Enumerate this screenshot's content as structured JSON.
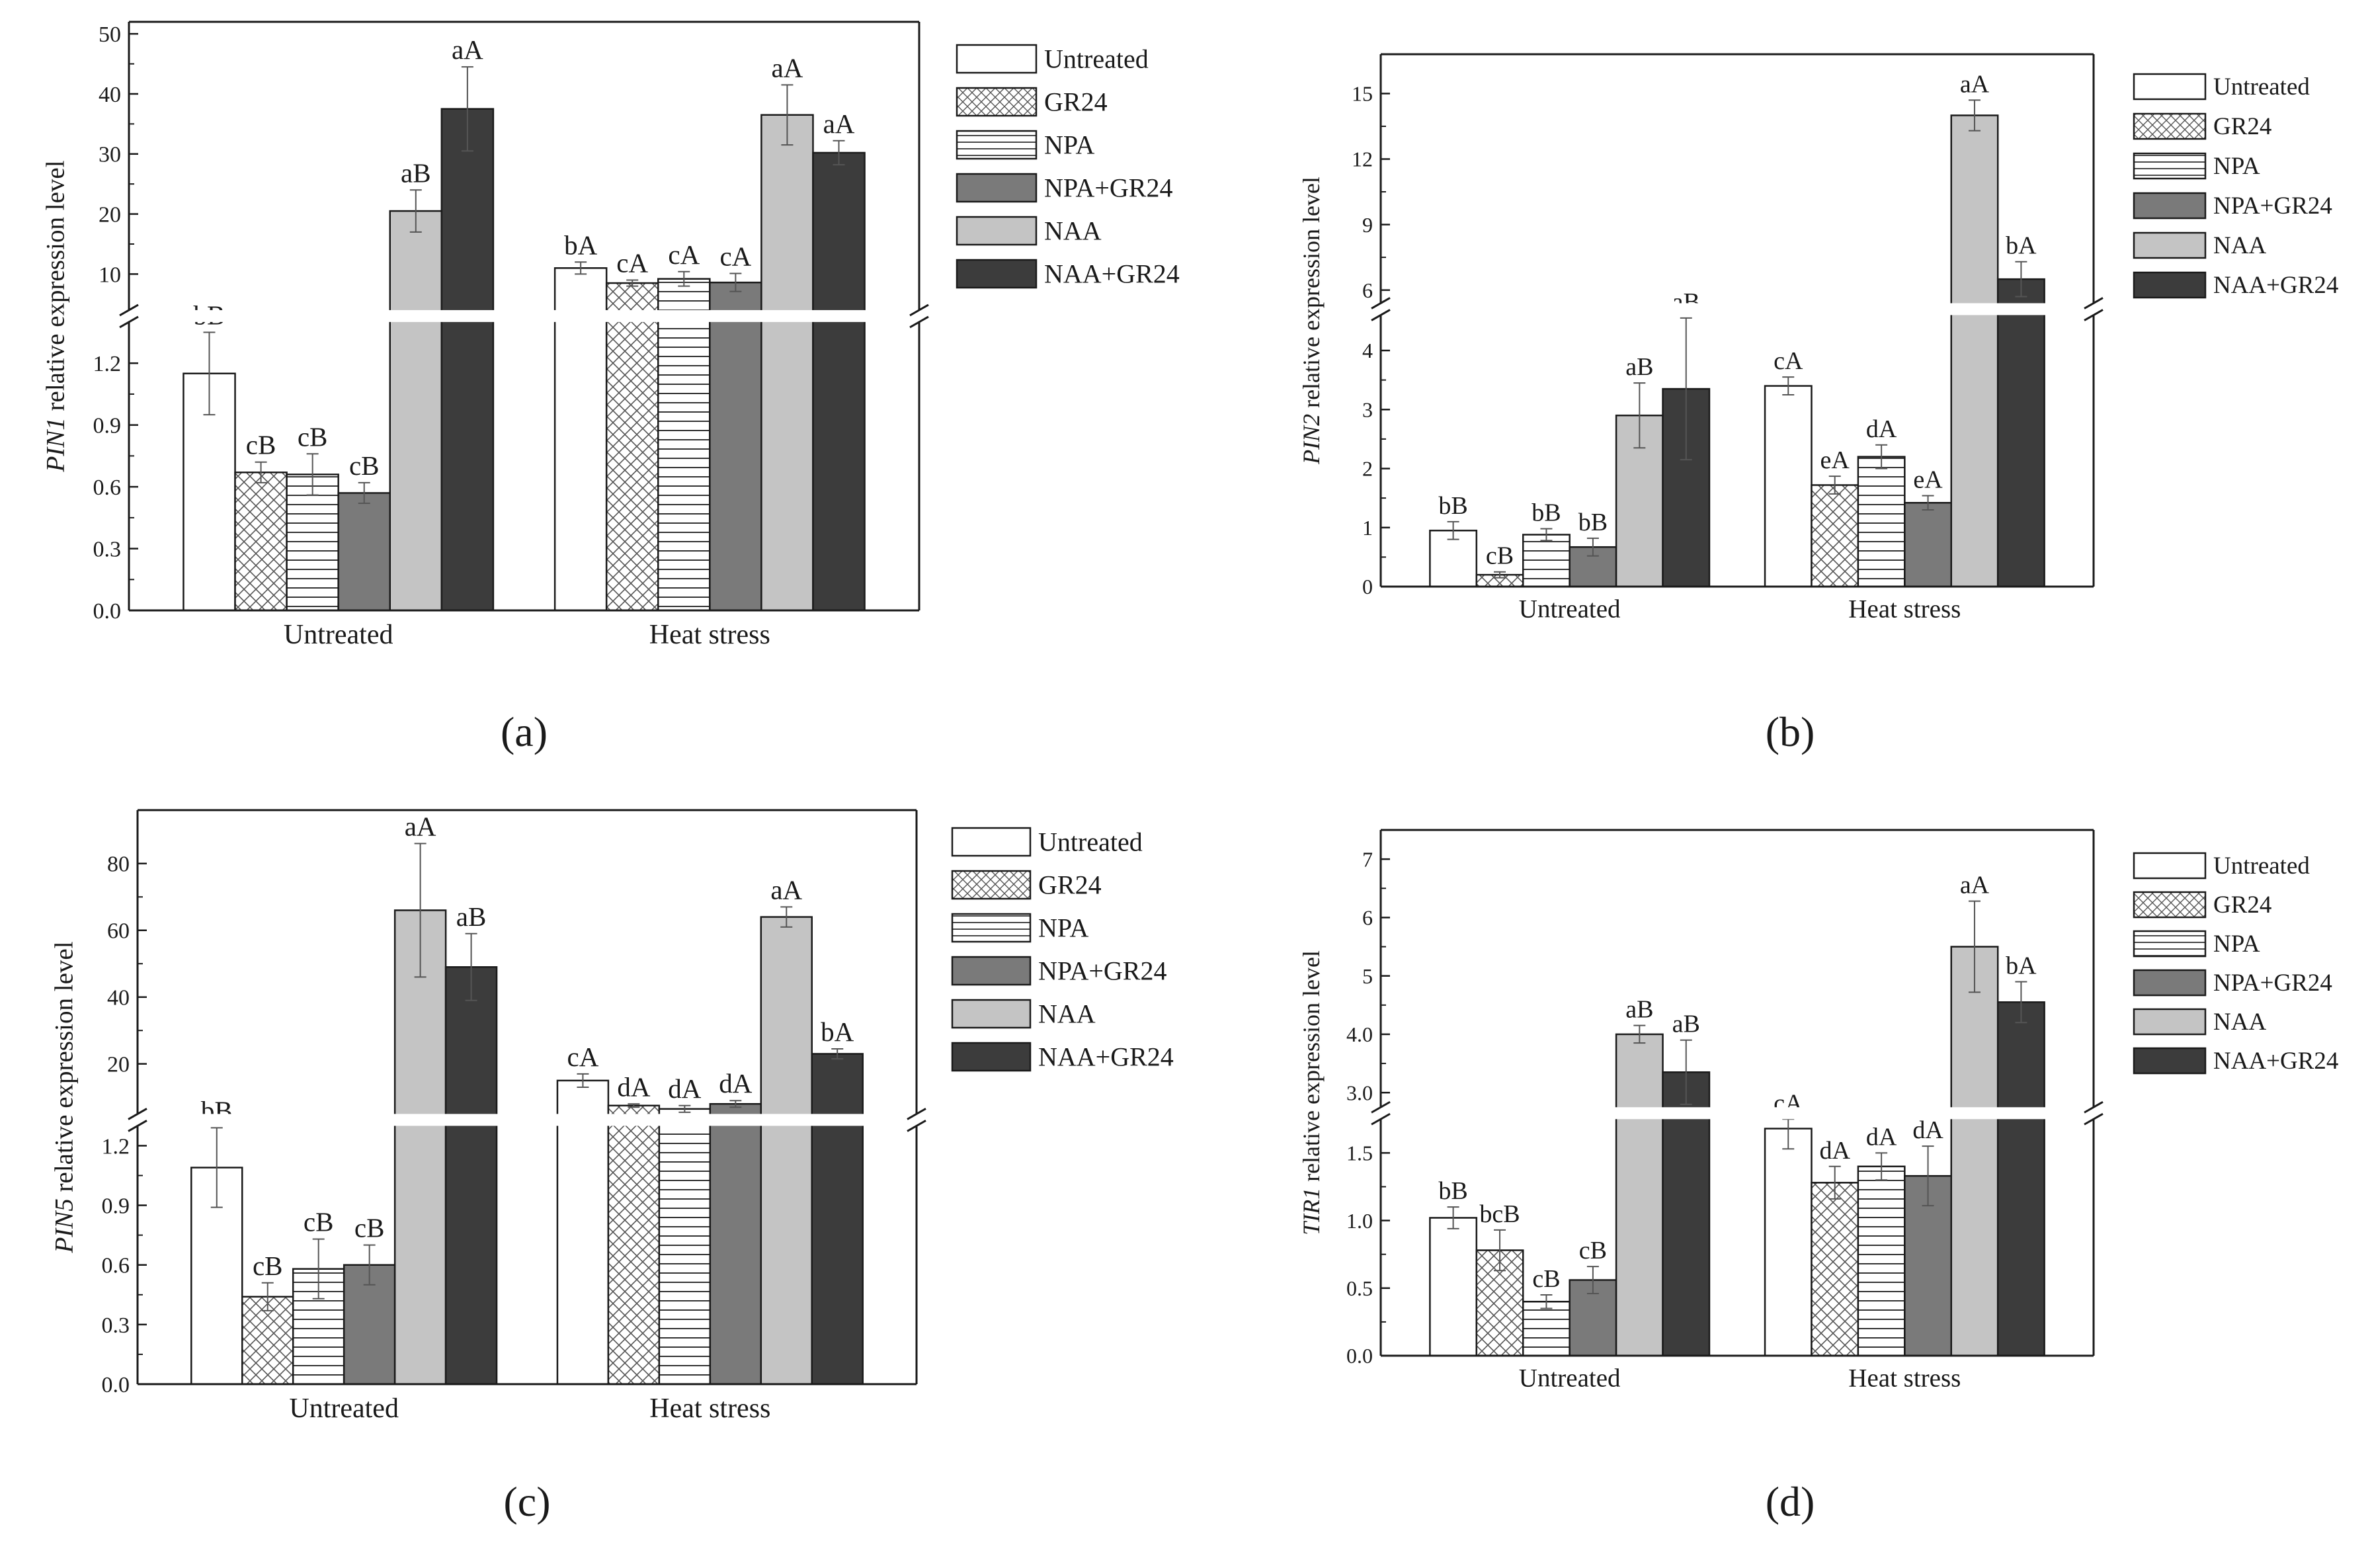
{
  "colors": {
    "Untreated": "#ffffff",
    "GR24": "#ffffff",
    "NPA": "#ffffff",
    "NPA+GR24": "#7a7a7a",
    "NAA": "#c4c4c4",
    "NAA+GR24": "#3c3c3c",
    "axis": "#1a1a1a"
  },
  "treatments": [
    "Untreated",
    "GR24",
    "NPA",
    "NPA+GR24",
    "NAA",
    "NAA+GR24"
  ],
  "chart_data": [
    {
      "id": "a",
      "type": "bar",
      "panel_label": "(a)",
      "panel_letter": "a",
      "ylabel_gene": "PIN1",
      "ylabel_rest": " relative expression level",
      "categories": [
        "Untreated",
        "Heat stress"
      ],
      "y_break": {
        "lower": [
          0,
          1.4
        ],
        "lower_ticks": [
          0.0,
          0.3,
          0.6,
          0.9,
          1.2
        ],
        "upper": [
          4,
          52
        ],
        "upper_ticks": [
          10,
          20,
          30,
          40,
          50
        ]
      },
      "series": [
        {
          "name": "Untreated",
          "values": [
            1.15,
            11.0
          ],
          "errors": [
            0.2,
            1.0
          ],
          "labels": [
            "bB",
            "bA"
          ]
        },
        {
          "name": "GR24",
          "values": [
            0.67,
            8.5
          ],
          "errors": [
            0.05,
            0.5
          ],
          "labels": [
            "cB",
            "cA"
          ]
        },
        {
          "name": "NPA",
          "values": [
            0.66,
            9.2
          ],
          "errors": [
            0.1,
            1.2
          ],
          "labels": [
            "cB",
            "cA"
          ]
        },
        {
          "name": "NPA+GR24",
          "values": [
            0.57,
            8.6
          ],
          "errors": [
            0.05,
            1.5
          ],
          "labels": [
            "cB",
            "cA"
          ]
        },
        {
          "name": "NAA",
          "values": [
            20.5,
            36.5
          ],
          "errors": [
            3.5,
            5.0
          ],
          "labels": [
            "aB",
            "aA"
          ]
        },
        {
          "name": "NAA+GR24",
          "values": [
            37.5,
            30.2
          ],
          "errors": [
            7.0,
            2.0
          ],
          "labels": [
            "aA",
            "aA"
          ]
        }
      ]
    },
    {
      "id": "b",
      "type": "bar",
      "panel_label": "(b)",
      "panel_letter": "b",
      "ylabel_gene": "PIN2",
      "ylabel_rest": " relative expression level",
      "categories": [
        "Untreated",
        "Heat stress"
      ],
      "y_break": {
        "lower": [
          0,
          4.6
        ],
        "lower_ticks": [
          0,
          1,
          2,
          3,
          4
        ],
        "upper": [
          5.4,
          16.8
        ],
        "upper_ticks": [
          6,
          9,
          12,
          15
        ]
      },
      "series": [
        {
          "name": "Untreated",
          "values": [
            0.95,
            3.4
          ],
          "errors": [
            0.15,
            0.15
          ],
          "labels": [
            "bB",
            "cA"
          ]
        },
        {
          "name": "GR24",
          "values": [
            0.2,
            1.72
          ],
          "errors": [
            0.05,
            0.15
          ],
          "labels": [
            "cB",
            "eA"
          ]
        },
        {
          "name": "NPA",
          "values": [
            0.88,
            2.2
          ],
          "errors": [
            0.1,
            0.2
          ],
          "labels": [
            "bB",
            "dA"
          ]
        },
        {
          "name": "NPA+GR24",
          "values": [
            0.67,
            1.42
          ],
          "errors": [
            0.15,
            0.12
          ],
          "labels": [
            "bB",
            "eA"
          ]
        },
        {
          "name": "NAA",
          "values": [
            2.9,
            14.0
          ],
          "errors": [
            0.55,
            0.7
          ],
          "labels": [
            "aB",
            "aA"
          ]
        },
        {
          "name": "NAA+GR24",
          "values": [
            3.35,
            6.5
          ],
          "errors": [
            1.2,
            0.8
          ],
          "labels": [
            "aB",
            "bA"
          ]
        }
      ]
    },
    {
      "id": "c",
      "type": "bar",
      "panel_label": "(c)",
      "panel_letter": "c",
      "ylabel_gene": "PIN5",
      "ylabel_rest": " relative expression level",
      "categories": [
        "Untreated",
        "Heat stress"
      ],
      "y_break": {
        "lower": [
          0,
          1.3
        ],
        "lower_ticks": [
          0.0,
          0.3,
          0.6,
          0.9,
          1.2
        ],
        "upper": [
          5,
          96
        ],
        "upper_ticks": [
          20,
          40,
          60,
          80
        ]
      },
      "series": [
        {
          "name": "Untreated",
          "values": [
            1.09,
            15.0
          ],
          "errors": [
            0.2,
            2.0
          ],
          "labels": [
            "bB",
            "cA"
          ]
        },
        {
          "name": "GR24",
          "values": [
            0.44,
            7.5
          ],
          "errors": [
            0.07,
            0.5
          ],
          "labels": [
            "cB",
            "dA"
          ]
        },
        {
          "name": "NPA",
          "values": [
            0.58,
            6.5
          ],
          "errors": [
            0.15,
            1.0
          ],
          "labels": [
            "cB",
            "dA"
          ]
        },
        {
          "name": "NPA+GR24",
          "values": [
            0.6,
            8.0
          ],
          "errors": [
            0.1,
            1.0
          ],
          "labels": [
            "cB",
            "dA"
          ]
        },
        {
          "name": "NAA",
          "values": [
            66.0,
            64.0
          ],
          "errors": [
            20.0,
            3.0
          ],
          "labels": [
            "aA",
            "aA"
          ]
        },
        {
          "name": "NAA+GR24",
          "values": [
            49.0,
            23.0
          ],
          "errors": [
            10.0,
            1.5
          ],
          "labels": [
            "aB",
            "bA"
          ]
        }
      ]
    },
    {
      "id": "d",
      "type": "bar",
      "panel_label": "(d)",
      "panel_letter": "d",
      "ylabel_gene": "TIR1",
      "ylabel_rest": " relative expression level",
      "categories": [
        "Untreated",
        "Heat stress"
      ],
      "y_break": {
        "lower": [
          0,
          1.75
        ],
        "lower_ticks": [
          0.0,
          0.5,
          1.0,
          1.5
        ],
        "upper": [
          2.75,
          7.5
        ],
        "upper_ticks": [
          3,
          4,
          5,
          6,
          7
        ]
      },
      "series": [
        {
          "name": "Untreated",
          "values": [
            1.02,
            1.68
          ],
          "errors": [
            0.08,
            0.15
          ],
          "labels": [
            "bB",
            "cA"
          ]
        },
        {
          "name": "GR24",
          "values": [
            0.78,
            1.28
          ],
          "errors": [
            0.15,
            0.12
          ],
          "labels": [
            "bcB",
            "dA"
          ]
        },
        {
          "name": "NPA",
          "values": [
            0.4,
            1.4
          ],
          "errors": [
            0.05,
            0.1
          ],
          "labels": [
            "cB",
            "dA"
          ]
        },
        {
          "name": "NPA+GR24",
          "values": [
            0.56,
            1.33
          ],
          "errors": [
            0.1,
            0.22
          ],
          "labels": [
            "cB",
            "dA"
          ]
        },
        {
          "name": "NAA",
          "values": [
            4.0,
            5.5
          ],
          "errors": [
            0.15,
            0.78
          ],
          "labels": [
            "aB",
            "aA"
          ]
        },
        {
          "name": "NAA+GR24",
          "values": [
            3.35,
            4.55
          ],
          "errors": [
            0.55,
            0.35
          ],
          "labels": [
            "aB",
            "bA"
          ]
        }
      ]
    }
  ]
}
